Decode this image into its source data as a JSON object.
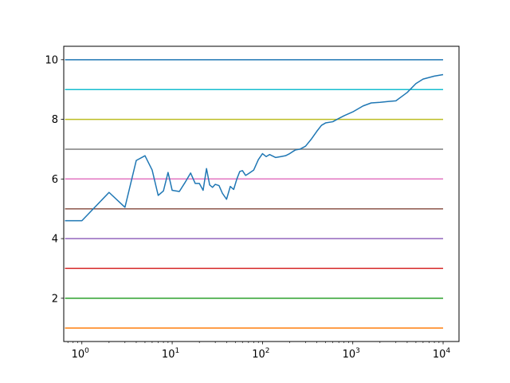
{
  "chart_data": {
    "type": "line",
    "title": "",
    "xlabel": "",
    "ylabel": "",
    "x_scale": "log",
    "xlim": [
      0.63,
      15000
    ],
    "ylim": [
      0.55,
      10.45
    ],
    "grid": false,
    "x_ticks": [
      {
        "value": 1,
        "base": "10",
        "exp": "0"
      },
      {
        "value": 10,
        "base": "10",
        "exp": "1"
      },
      {
        "value": 100,
        "base": "10",
        "exp": "2"
      },
      {
        "value": 1000,
        "base": "10",
        "exp": "3"
      },
      {
        "value": 10000,
        "base": "10",
        "exp": "4"
      }
    ],
    "y_ticks": [
      {
        "value": 2,
        "label": "2"
      },
      {
        "value": 4,
        "label": "4"
      },
      {
        "value": 6,
        "label": "6"
      },
      {
        "value": 8,
        "label": "8"
      },
      {
        "value": 10,
        "label": "10"
      }
    ],
    "series": [
      {
        "color": "#ff7f0e",
        "x": [
          0.65,
          10000
        ],
        "y": [
          1,
          1
        ]
      },
      {
        "color": "#2ca02c",
        "x": [
          0.65,
          10000
        ],
        "y": [
          2,
          2
        ]
      },
      {
        "color": "#d62728",
        "x": [
          0.65,
          10000
        ],
        "y": [
          3,
          3
        ]
      },
      {
        "color": "#9467bd",
        "x": [
          0.65,
          10000
        ],
        "y": [
          4,
          4
        ]
      },
      {
        "color": "#8c564b",
        "x": [
          0.65,
          10000
        ],
        "y": [
          5,
          5
        ]
      },
      {
        "color": "#e377c2",
        "x": [
          0.65,
          10000
        ],
        "y": [
          6,
          6
        ]
      },
      {
        "color": "#7f7f7f",
        "x": [
          0.65,
          10000
        ],
        "y": [
          7,
          7
        ]
      },
      {
        "color": "#bcbd22",
        "x": [
          0.65,
          10000
        ],
        "y": [
          8,
          8
        ]
      },
      {
        "color": "#17becf",
        "x": [
          0.65,
          10000
        ],
        "y": [
          9,
          9
        ]
      },
      {
        "color": "#1f77b4",
        "x": [
          0.65,
          10000
        ],
        "y": [
          10,
          10
        ]
      },
      {
        "color": "#1f77b4",
        "x": [
          0.65,
          1,
          2,
          3,
          4,
          5,
          6,
          7,
          8,
          9,
          10,
          12,
          14,
          16,
          18,
          20,
          22,
          24,
          26,
          28,
          30,
          33,
          36,
          40,
          44,
          48,
          52,
          56,
          60,
          65,
          70,
          80,
          90,
          100,
          110,
          120,
          140,
          160,
          180,
          200,
          230,
          260,
          300,
          350,
          400,
          450,
          500,
          600,
          700,
          800,
          1000,
          1300,
          1600,
          2000,
          2500,
          3000,
          4000,
          5000,
          6000,
          8000,
          10000
        ],
        "y": [
          4.6,
          4.6,
          5.55,
          5.05,
          6.62,
          6.78,
          6.3,
          5.45,
          5.6,
          6.22,
          5.62,
          5.58,
          5.9,
          6.2,
          5.85,
          5.85,
          5.62,
          6.35,
          5.8,
          5.72,
          5.82,
          5.78,
          5.52,
          5.32,
          5.75,
          5.65,
          6.0,
          6.25,
          6.28,
          6.12,
          6.18,
          6.3,
          6.65,
          6.85,
          6.75,
          6.82,
          6.72,
          6.75,
          6.78,
          6.85,
          6.97,
          7.0,
          7.1,
          7.35,
          7.6,
          7.8,
          7.88,
          7.92,
          8.03,
          8.12,
          8.25,
          8.45,
          8.55,
          8.57,
          8.6,
          8.62,
          8.9,
          9.2,
          9.35,
          9.45,
          9.5
        ]
      }
    ]
  }
}
